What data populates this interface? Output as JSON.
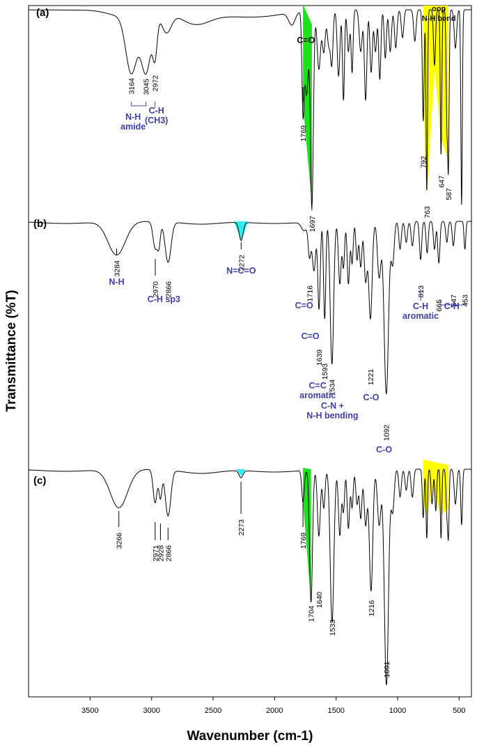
{
  "chart_data": {
    "type": "line",
    "xlabel": "Wavenumber (cm-1)",
    "ylabel": "Transmittance (%T)",
    "x_ticks": [
      "3500",
      "3000",
      "2500",
      "2000",
      "1500",
      "1000",
      "500"
    ],
    "xlim": [
      4000,
      400
    ],
    "x_reversed": true,
    "grid": false,
    "panels": [
      {
        "label": "(a)",
        "peaks": [
          "3164",
          "3045",
          "2972",
          "1769",
          "1697",
          "792",
          "763",
          "647",
          "587"
        ],
        "annotations": [
          "N-H\namide",
          "C-H\n(CH3)",
          "C=O",
          "oop\nN-H bend"
        ],
        "highlights": [
          {
            "from": 1769,
            "to": 1697,
            "color": "#1ee01e"
          },
          {
            "from": 792,
            "to": 587,
            "color": "#ffff00"
          }
        ]
      },
      {
        "label": "(b)",
        "peaks": [
          "3284",
          "2970",
          "2866",
          "2272",
          "1716",
          "1639",
          "1593",
          "1534",
          "1221",
          "1092",
          "813",
          "665",
          "547",
          "453"
        ],
        "annotations": [
          "N-H",
          "C-H sp3",
          "N=C=O",
          "C=O",
          "C=O",
          "C=C\naromatic",
          "C-N +\nN-H bending",
          "C-O",
          "C-O",
          "C-H\naromatic",
          "C-H"
        ],
        "highlights": [
          {
            "from": 2272,
            "to": 2272,
            "color": "#33eeee"
          }
        ]
      },
      {
        "label": "(c)",
        "peaks": [
          "3266",
          "2971",
          "2928",
          "2866",
          "2273",
          "1769",
          "1704",
          "1640",
          "1533",
          "1216",
          "1091"
        ],
        "annotations": [],
        "highlights": [
          {
            "from": 1769,
            "to": 1704,
            "color": "#1ee01e"
          },
          {
            "from": 2273,
            "to": 2273,
            "color": "#33eeee"
          },
          {
            "from": 792,
            "to": 587,
            "color": "#ffff00"
          }
        ]
      }
    ]
  }
}
